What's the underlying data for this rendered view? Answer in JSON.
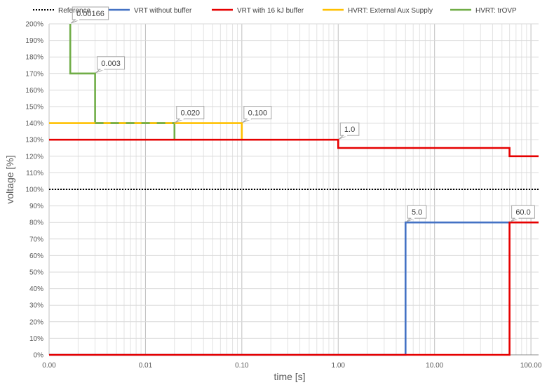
{
  "chart_data": {
    "type": "line",
    "xlabel": "time [s]",
    "ylabel": "voltage [%]",
    "x_scale": "log",
    "xlim": [
      0.001,
      120
    ],
    "ylim": [
      0,
      200
    ],
    "legend_position": "top",
    "grid": true,
    "x_tick_labels": [
      {
        "value": 0.001,
        "label": "0.00"
      },
      {
        "value": 0.01,
        "label": "0.01"
      },
      {
        "value": 0.1,
        "label": "0.10"
      },
      {
        "value": 1,
        "label": "1.00"
      },
      {
        "value": 10,
        "label": "10.00"
      },
      {
        "value": 100,
        "label": "100.00"
      }
    ],
    "y_tick_labels": [
      {
        "value": 0,
        "label": "0%"
      },
      {
        "value": 10,
        "label": "10%"
      },
      {
        "value": 20,
        "label": "20%"
      },
      {
        "value": 30,
        "label": "30%"
      },
      {
        "value": 40,
        "label": "40%"
      },
      {
        "value": 50,
        "label": "50%"
      },
      {
        "value": 60,
        "label": "60%"
      },
      {
        "value": 70,
        "label": "70%"
      },
      {
        "value": 80,
        "label": "80%"
      },
      {
        "value": 90,
        "label": "90%"
      },
      {
        "value": 100,
        "label": "100%"
      },
      {
        "value": 110,
        "label": "110%"
      },
      {
        "value": 120,
        "label": "120%"
      },
      {
        "value": 130,
        "label": "130%"
      },
      {
        "value": 140,
        "label": "140%"
      },
      {
        "value": 150,
        "label": "150%"
      },
      {
        "value": 160,
        "label": "160%"
      },
      {
        "value": 170,
        "label": "170%"
      },
      {
        "value": 180,
        "label": "180%"
      },
      {
        "value": 190,
        "label": "190%"
      },
      {
        "value": 200,
        "label": "200%"
      }
    ],
    "series": [
      {
        "name": "Reference",
        "color": "#000000",
        "dash": "dotted",
        "points": [
          [
            0.001,
            100
          ],
          [
            120,
            100
          ]
        ]
      },
      {
        "name": "VRT without buffer",
        "color": "#4472C4",
        "dash": "solid",
        "points": [
          [
            0.001,
            0
          ],
          [
            5.0,
            0
          ],
          [
            5.0,
            80
          ],
          [
            60.0,
            80
          ]
        ]
      },
      {
        "name": "VRT with 16 kJ buffer",
        "color": "#E60000",
        "dash": "solid",
        "points": [
          [
            0.001,
            130
          ],
          [
            1.0,
            130
          ],
          [
            1.0,
            125
          ],
          [
            60.0,
            125
          ],
          [
            60.0,
            120
          ],
          [
            120,
            120
          ]
        ]
      },
      {
        "name": "VRT with 16 kJ buffer",
        "legend": false,
        "color": "#E60000",
        "dash": "solid",
        "points": [
          [
            0.001,
            0
          ],
          [
            60.0,
            0
          ],
          [
            60.0,
            80
          ],
          [
            120,
            80
          ]
        ]
      },
      {
        "name": "HVRT: External Aux Supply",
        "color": "#FFC000",
        "dash": "solid",
        "points": [
          [
            0.001,
            140
          ],
          [
            0.1,
            140
          ],
          [
            0.1,
            130
          ]
        ]
      },
      {
        "name": "HVRT: trOVP",
        "color": "#70AD47",
        "dash": "solid",
        "points": [
          [
            0.00166,
            200
          ],
          [
            0.00166,
            170
          ],
          [
            0.003,
            170
          ],
          [
            0.003,
            140
          ],
          [
            0.02,
            140
          ],
          [
            0.02,
            130
          ]
        ]
      }
    ],
    "annotations": [
      {
        "text": "0.00166",
        "x": 0.00166,
        "y": 200,
        "color": "#70AD47"
      },
      {
        "text": "0.003",
        "x": 0.003,
        "y": 170,
        "color": "#70AD47"
      },
      {
        "text": "0.020",
        "x": 0.02,
        "y": 140,
        "color": "#70AD47"
      },
      {
        "text": "0.100",
        "x": 0.1,
        "y": 140,
        "color": "#FFC000"
      },
      {
        "text": "1.0",
        "x": 1.0,
        "y": 130,
        "color": "#E60000"
      },
      {
        "text": "5.0",
        "x": 5.0,
        "y": 80,
        "color": "#4472C4"
      },
      {
        "text": "60.0",
        "x": 60.0,
        "y": 80,
        "color": "#E60000"
      }
    ]
  }
}
